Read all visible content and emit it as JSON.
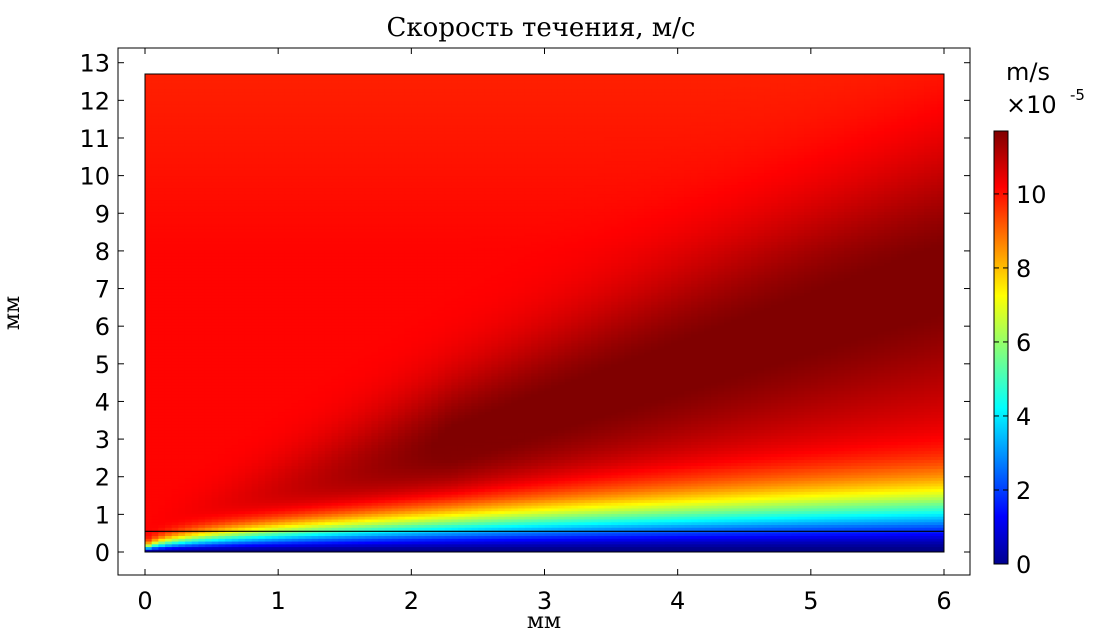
{
  "chart_data": {
    "type": "heatmap",
    "title": "Скорость течения, м/с",
    "xlabel": "мм",
    "ylabel": "мм",
    "xlim": [
      -0.2,
      6.2
    ],
    "ylim": [
      -0.6,
      13.3
    ],
    "x_ticks": [
      0,
      1,
      2,
      3,
      4,
      5,
      6
    ],
    "y_ticks": [
      0,
      1,
      2,
      3,
      4,
      5,
      6,
      7,
      8,
      9,
      10,
      11,
      12,
      13
    ],
    "domain": {
      "x": [
        0,
        6
      ],
      "y": [
        0,
        12.7
      ]
    },
    "interface_line": {
      "y": 0.55
    },
    "colorbar": {
      "unit": "m/s",
      "multiplier": "×10",
      "exponent": "-5",
      "range": [
        0,
        11.7
      ],
      "ticks": [
        0,
        2,
        4,
        6,
        8,
        10
      ],
      "colormap": "jet"
    },
    "field_description": {
      "inlet_region": "red ~10 near left edge",
      "max_region": "dark red ~11.7 around x=4.2, y=5",
      "boundary_layer": "blue near y=0, rising to ~1.5 at x=6"
    }
  }
}
